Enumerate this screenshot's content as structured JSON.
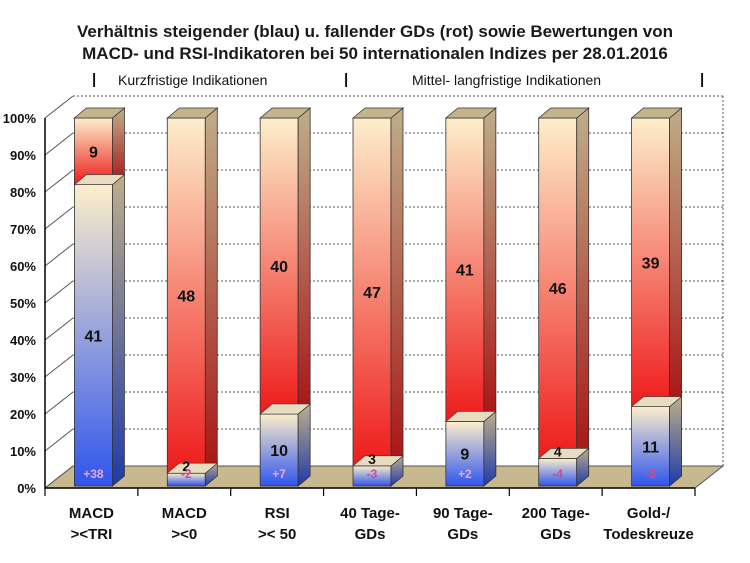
{
  "title_line1": "Verhältnis steigender (blau) u. fallender GDs (rot) sowie Bewertungen von",
  "title_line2": "MACD- und RSI-Indikatoren bei 50 internationalen Indizes per 28.01.2016",
  "section_short": "Kurzfristige Indikationen",
  "section_long": "Mittel- langfristige Indikationen",
  "chart_data": {
    "type": "bar",
    "stacked": true,
    "ylim": [
      0,
      100
    ],
    "yticks": [
      "0%",
      "10%",
      "20%",
      "30%",
      "40%",
      "50%",
      "60%",
      "70%",
      "80%",
      "90%",
      "100%"
    ],
    "categories": [
      [
        "MACD",
        "><TRI"
      ],
      [
        "MACD",
        "><0"
      ],
      [
        "RSI",
        ">< 50"
      ],
      [
        "40 Tage-",
        "GDs"
      ],
      [
        "90 Tage-",
        "GDs"
      ],
      [
        "200 Tage-",
        "GDs"
      ],
      [
        "Gold-/",
        "Todeskreuze"
      ]
    ],
    "series": [
      {
        "values": [
          41,
          2,
          10,
          3,
          9,
          4,
          11
        ],
        "color": "#3a5fe8"
      },
      {
        "values": [
          9,
          48,
          40,
          47,
          41,
          46,
          39
        ],
        "color": "#e81e1e"
      }
    ],
    "net_labels": [
      "+38",
      "-2",
      "+7",
      "-3",
      "+2",
      "-4",
      "-3"
    ],
    "total": 50
  }
}
